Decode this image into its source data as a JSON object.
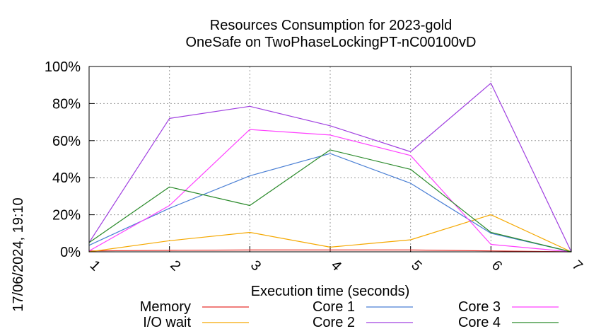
{
  "timestamp": "17/06/2024, 19:10",
  "chart_data": {
    "type": "line",
    "title": "Resources Consumption for 2023-gold",
    "subtitle": "OneSafe on TwoPhaseLockingPT-nC00100vD",
    "xlabel": "Execution time (seconds)",
    "ylabel": "",
    "x": [
      1,
      2,
      3,
      4,
      5,
      6,
      7
    ],
    "xlim": [
      1,
      7
    ],
    "ylim": [
      0,
      100
    ],
    "yticks": [
      "0%",
      "20%",
      "40%",
      "60%",
      "80%",
      "100%"
    ],
    "xticks": [
      "1",
      "2",
      "3",
      "4",
      "5",
      "6",
      "7"
    ],
    "grid": true,
    "legend_position": "bottom",
    "series": [
      {
        "name": "Memory",
        "color": "#e8322d",
        "values": [
          0.5,
          0.8,
          1,
          1,
          1,
          0.5,
          0
        ]
      },
      {
        "name": "I/O wait",
        "color": "#f5a800",
        "values": [
          0,
          6,
          10.5,
          2.5,
          6.5,
          20,
          0
        ]
      },
      {
        "name": "Core 1",
        "color": "#4a7fd4",
        "values": [
          3.5,
          23.5,
          41,
          53,
          37,
          10,
          0
        ]
      },
      {
        "name": "Core 2",
        "color": "#a040e0",
        "values": [
          5,
          72,
          78.5,
          68,
          54,
          91,
          0
        ]
      },
      {
        "name": "Core 3",
        "color": "#ff40ff",
        "values": [
          0.5,
          25,
          66,
          63,
          52,
          4,
          0
        ]
      },
      {
        "name": "Core 4",
        "color": "#2a8a2a",
        "values": [
          5,
          35,
          25,
          55,
          44.5,
          10.5,
          0
        ]
      }
    ]
  }
}
